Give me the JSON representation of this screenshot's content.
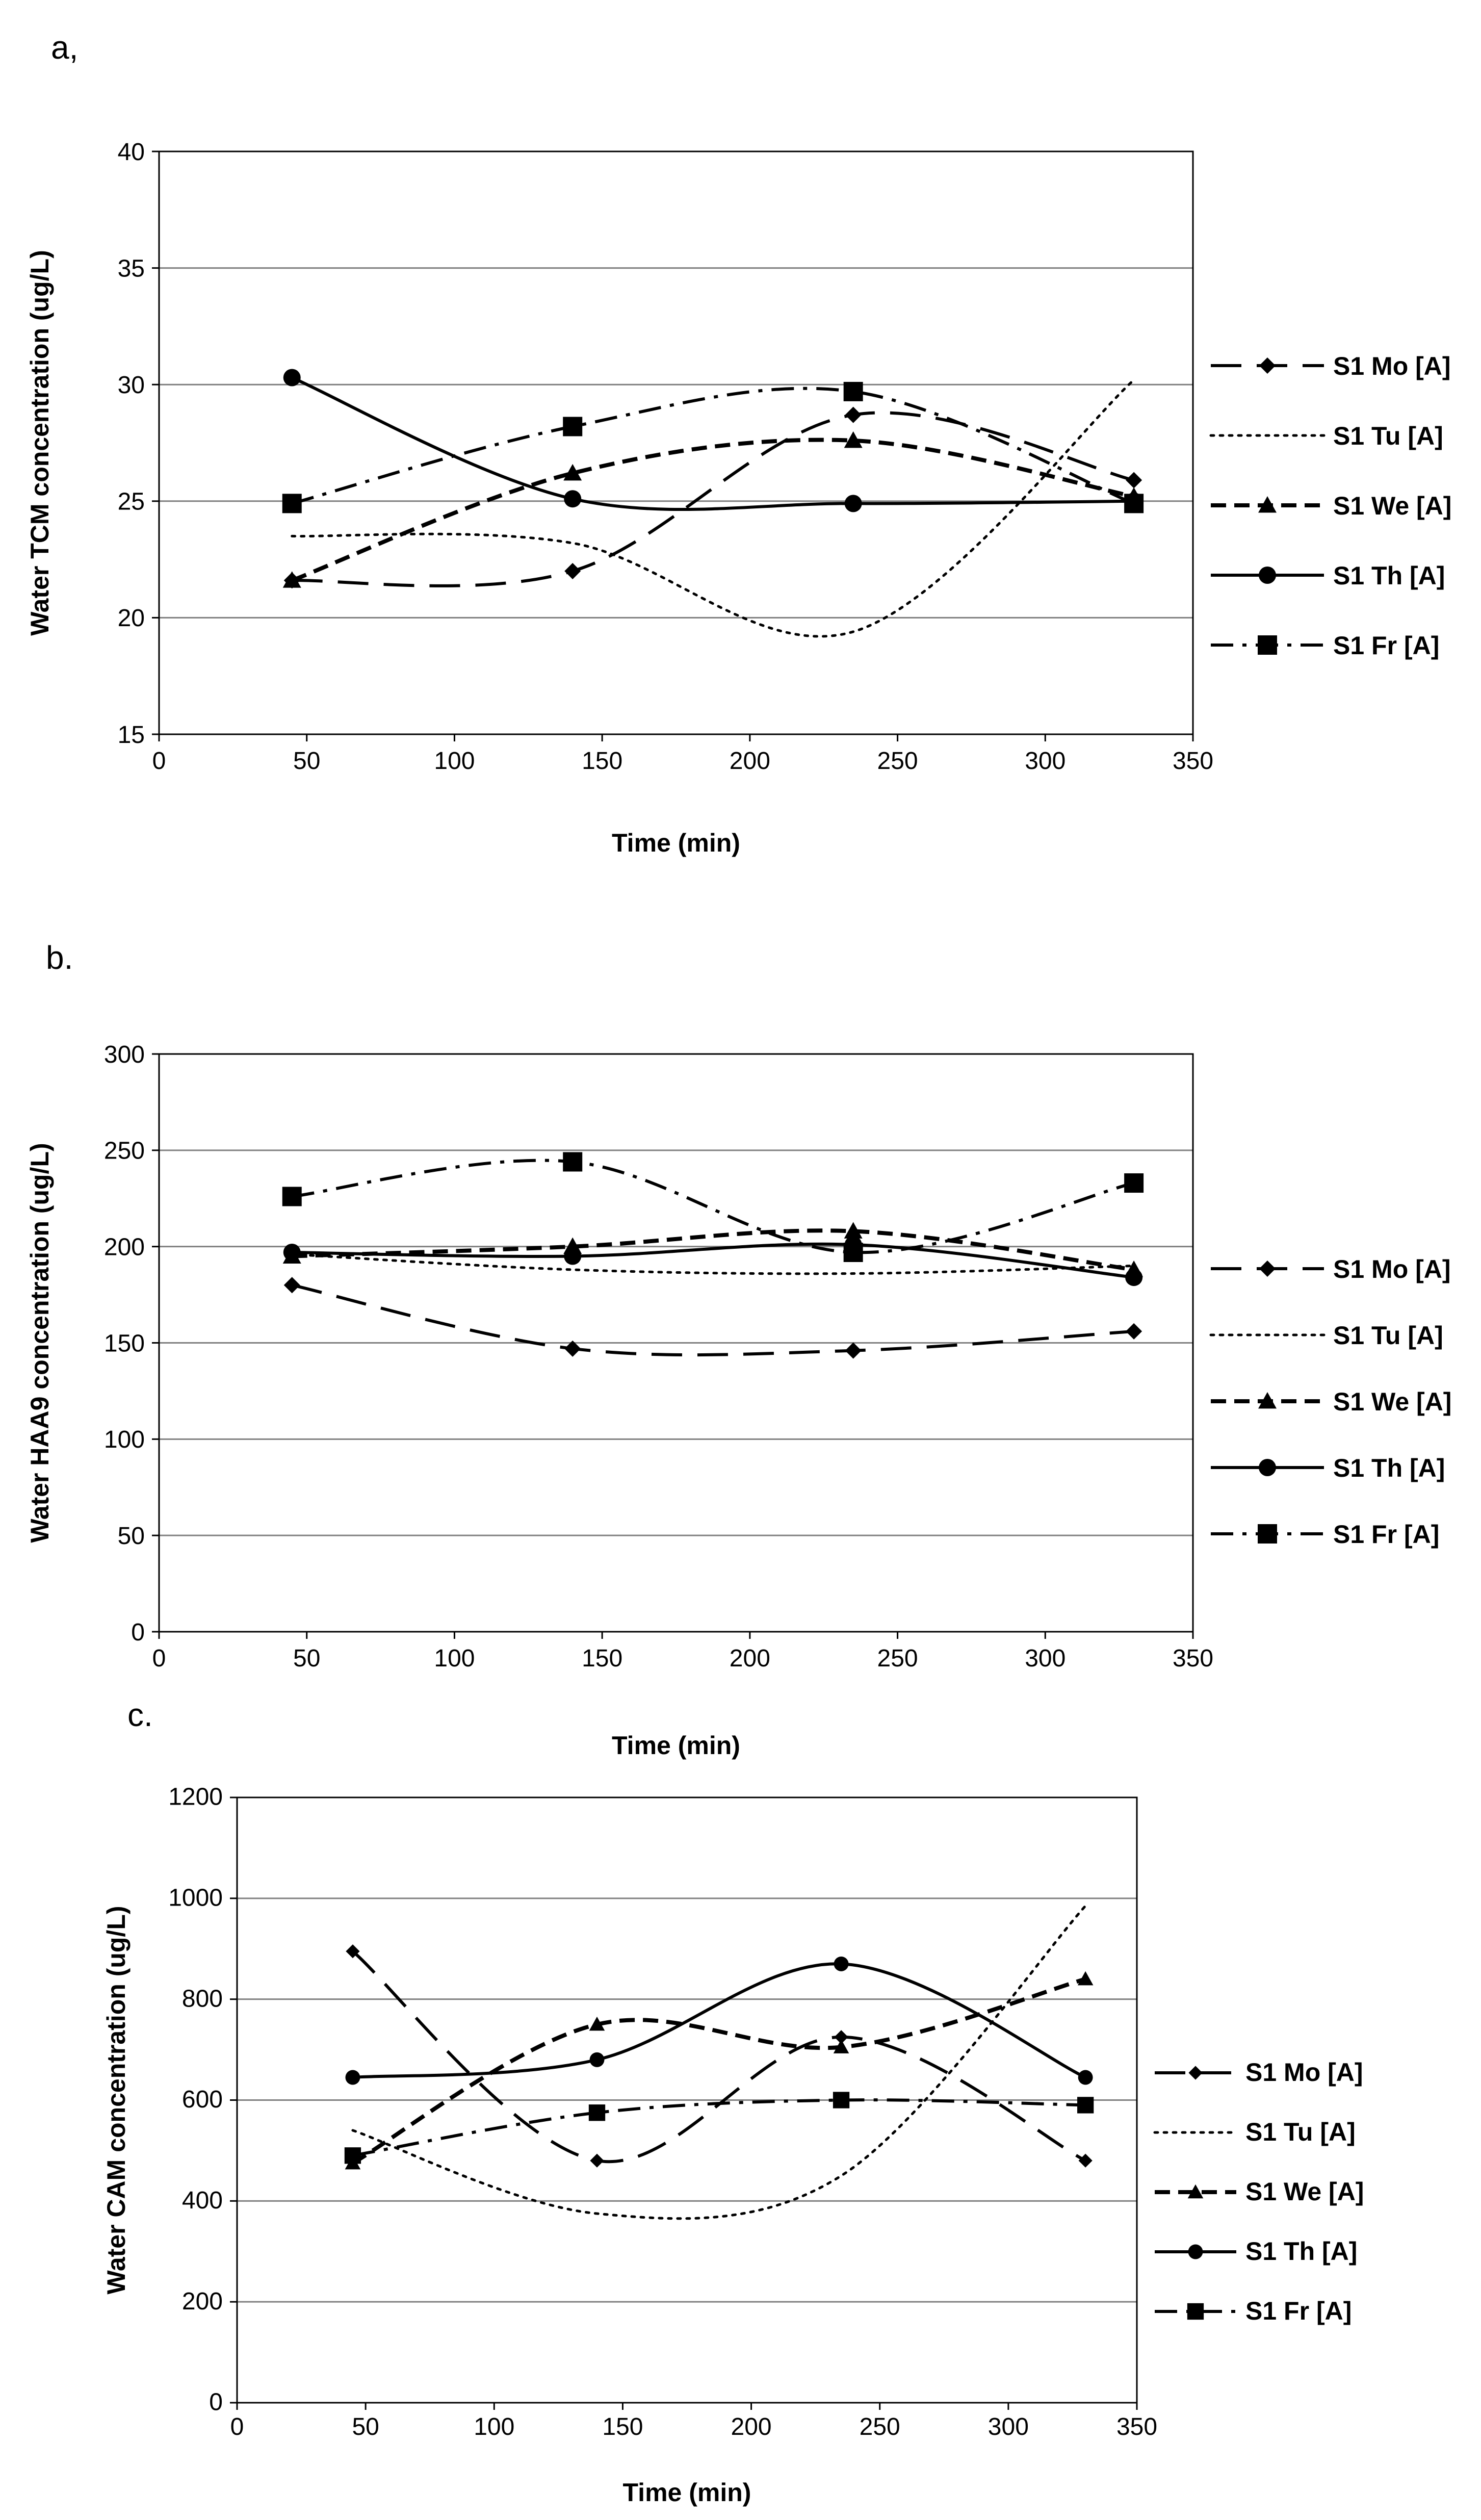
{
  "chart_data": [
    {
      "type": "line",
      "panel": "a,",
      "xlabel": "Time (min)",
      "ylabel": "Water TCM concentration (ug/L)",
      "xlim": [
        0,
        350
      ],
      "ylim": [
        15,
        40
      ],
      "xticks": [
        "0",
        "50",
        "100",
        "150",
        "200",
        "250",
        "300",
        "350"
      ],
      "yticks": [
        "15",
        "20",
        "25",
        "30",
        "35",
        "40"
      ],
      "grid": true,
      "legend": "right",
      "series": [
        {
          "name": "S1 Mo [A]",
          "style": "mo",
          "x": [
            45,
            140,
            235,
            330
          ],
          "values": [
            21.6,
            22.0,
            28.7,
            25.9
          ]
        },
        {
          "name": "S1 Tu [A]",
          "style": "tu",
          "x": [
            45,
            140,
            235,
            330
          ],
          "values": [
            23.5,
            23.2,
            19.4,
            30.2
          ]
        },
        {
          "name": "S1 We [A]",
          "style": "we",
          "x": [
            45,
            140,
            235,
            330
          ],
          "values": [
            21.6,
            26.2,
            27.6,
            25.2
          ]
        },
        {
          "name": "S1 Th [A]",
          "style": "th",
          "x": [
            45,
            140,
            235,
            330
          ],
          "values": [
            30.3,
            25.1,
            24.9,
            25.0
          ]
        },
        {
          "name": "S1 Fr [A]",
          "style": "fr",
          "x": [
            45,
            140,
            235,
            330
          ],
          "values": [
            24.9,
            28.2,
            29.7,
            24.9
          ]
        }
      ]
    },
    {
      "type": "line",
      "panel": "b.",
      "xlabel": "Time (min)",
      "ylabel": "Water HAA9 concentration (ug/L)",
      "xlim": [
        0,
        350
      ],
      "ylim": [
        0,
        300
      ],
      "xticks": [
        "0",
        "50",
        "100",
        "150",
        "200",
        "250",
        "300",
        "350"
      ],
      "yticks": [
        "0",
        "50",
        "100",
        "150",
        "200",
        "250",
        "300"
      ],
      "grid": true,
      "legend": "right",
      "series": [
        {
          "name": "S1 Mo [A]",
          "style": "mo",
          "x": [
            45,
            140,
            235,
            330
          ],
          "values": [
            180,
            147,
            146,
            156
          ]
        },
        {
          "name": "S1 Tu [A]",
          "style": "tu",
          "x": [
            45,
            140,
            235,
            330
          ],
          "values": [
            196,
            188,
            186,
            190
          ]
        },
        {
          "name": "S1 We [A]",
          "style": "we",
          "x": [
            45,
            140,
            235,
            330
          ],
          "values": [
            195,
            200,
            208,
            188
          ]
        },
        {
          "name": "S1 Th [A]",
          "style": "th",
          "x": [
            45,
            140,
            235,
            330
          ],
          "values": [
            197,
            195,
            201,
            184
          ]
        },
        {
          "name": "S1 Fr [A]",
          "style": "fr",
          "x": [
            45,
            140,
            235,
            330
          ],
          "values": [
            226,
            244,
            197,
            233
          ]
        }
      ]
    },
    {
      "type": "line",
      "panel": "c.",
      "xlabel": "Time (min)",
      "ylabel": "Water CAM concentration (ug/L)",
      "xlim": [
        0,
        350
      ],
      "ylim": [
        0,
        1200
      ],
      "xticks": [
        "0",
        "50",
        "100",
        "150",
        "200",
        "250",
        "300",
        "350"
      ],
      "yticks": [
        "0",
        "200",
        "400",
        "600",
        "800",
        "1000",
        "1200"
      ],
      "grid": true,
      "legend": "right",
      "series": [
        {
          "name": "S1 Mo [A]",
          "style": "mo",
          "x": [
            45,
            140,
            235,
            330
          ],
          "values": [
            895,
            480,
            725,
            480
          ]
        },
        {
          "name": "S1 Tu [A]",
          "style": "tu",
          "x": [
            45,
            140,
            235,
            330
          ],
          "values": [
            540,
            375,
            450,
            985
          ]
        },
        {
          "name": "S1 We [A]",
          "style": "we",
          "x": [
            45,
            140,
            235,
            330
          ],
          "values": [
            475,
            750,
            705,
            840
          ]
        },
        {
          "name": "S1 Th [A]",
          "style": "th",
          "x": [
            45,
            140,
            235,
            330
          ],
          "values": [
            645,
            680,
            870,
            645
          ]
        },
        {
          "name": "S1 Fr [A]",
          "style": "fr",
          "x": [
            45,
            140,
            235,
            330
          ],
          "values": [
            490,
            575,
            600,
            590
          ]
        }
      ]
    }
  ]
}
